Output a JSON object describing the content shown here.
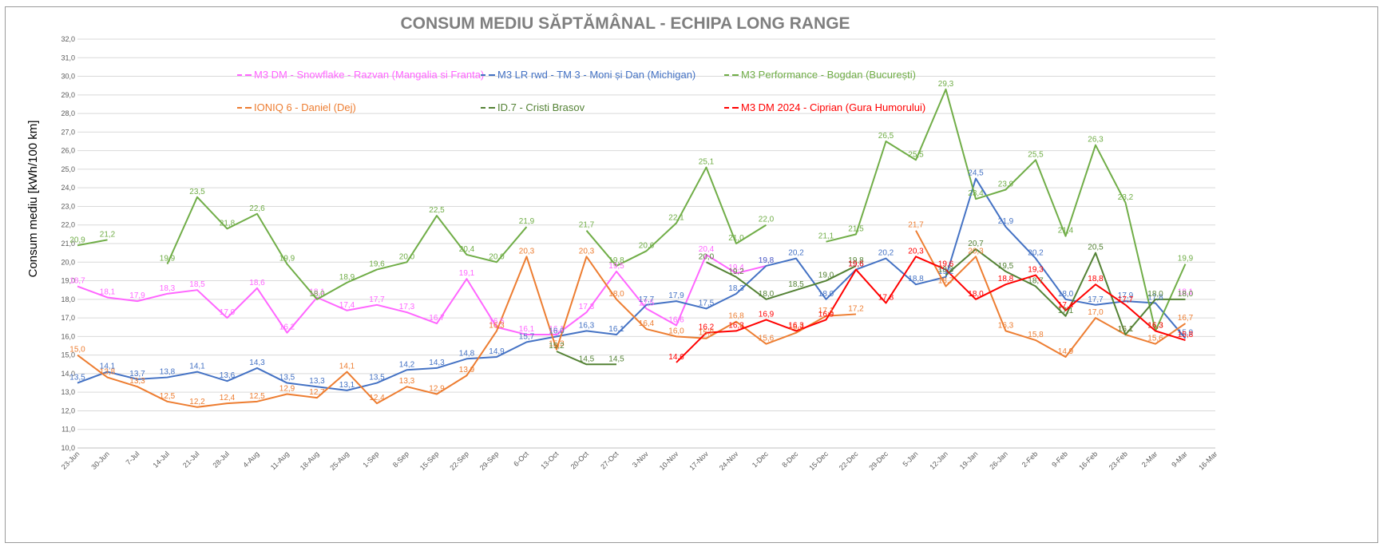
{
  "chart_data": {
    "type": "line",
    "title": "CONSUM MEDIU SĂPTĂMÂNAL - ECHIPA LONG RANGE",
    "ylabel": "Consum mediu [kWh/100 km]",
    "xlabel": "",
    "ylim": [
      10.0,
      32.0
    ],
    "ytick_step": 1.0,
    "grid": true,
    "legend_position": "top-left inside plot, two rows",
    "categories": [
      "23-Jun",
      "30-Jun",
      "7-Jul",
      "14-Jul",
      "21-Jul",
      "28-Jul",
      "4-Aug",
      "11-Aug",
      "18-Aug",
      "25-Aug",
      "1-Sep",
      "8-Sep",
      "15-Sep",
      "22-Sep",
      "29-Sep",
      "6-Oct",
      "13-Oct",
      "20-Oct",
      "27-Oct",
      "3-Nov",
      "10-Nov",
      "17-Nov",
      "24-Nov",
      "1-Dec",
      "8-Dec",
      "15-Dec",
      "22-Dec",
      "29-Dec",
      "5-Jan",
      "12-Jan",
      "19-Jan",
      "26-Jan",
      "2-Feb",
      "9-Feb",
      "16-Feb",
      "23-Feb",
      "2-Mar",
      "9-Mar",
      "16-Mar"
    ],
    "series": [
      {
        "name": "M3 DM - Snowflake - Razvan (Mangalia si Franta)",
        "color": "#ff66ff",
        "values": [
          18.7,
          18.1,
          17.9,
          18.3,
          18.5,
          17.0,
          18.6,
          16.2,
          18.1,
          17.4,
          17.7,
          17.3,
          16.7,
          19.1,
          16.5,
          16.1,
          16.1,
          17.3,
          19.5,
          17.5,
          16.6,
          20.4,
          19.4,
          19.8,
          null,
          null,
          null,
          null,
          null,
          null,
          null,
          null,
          null,
          null,
          null,
          null,
          null,
          18.1,
          null
        ]
      },
      {
        "name": "M3 LR rwd - TM 3 - Moni și Dan (Michigan)",
        "color": "#4472c4",
        "values": [
          13.5,
          14.1,
          13.7,
          13.8,
          14.1,
          13.6,
          14.3,
          13.5,
          13.3,
          13.1,
          13.5,
          14.2,
          14.3,
          14.8,
          14.9,
          15.7,
          16.0,
          16.3,
          16.1,
          17.7,
          17.9,
          17.5,
          18.3,
          19.8,
          20.2,
          18.0,
          19.6,
          20.2,
          18.8,
          19.2,
          24.5,
          21.9,
          20.2,
          18.0,
          17.7,
          17.9,
          17.8,
          15.9,
          null
        ]
      },
      {
        "name": "M3 Performance - Bogdan (București)",
        "color": "#70ad47",
        "values": [
          20.9,
          21.2,
          null,
          19.9,
          23.5,
          21.8,
          22.6,
          19.9,
          18.0,
          18.9,
          19.6,
          20.0,
          22.5,
          20.4,
          20.0,
          21.9,
          null,
          21.7,
          19.8,
          20.6,
          22.1,
          25.1,
          21.0,
          22.0,
          null,
          21.1,
          21.5,
          26.5,
          25.5,
          29.3,
          23.4,
          23.9,
          25.5,
          21.4,
          26.3,
          23.2,
          16.3,
          19.9,
          null
        ]
      },
      {
        "name": "IONIQ 6 - Daniel (Dej)",
        "color": "#ed7d31",
        "values": [
          15.0,
          13.8,
          13.3,
          12.5,
          12.2,
          12.4,
          12.5,
          12.9,
          12.7,
          14.1,
          12.4,
          13.3,
          12.9,
          13.9,
          16.3,
          20.3,
          15.3,
          20.3,
          18.0,
          16.4,
          16.0,
          15.9,
          16.8,
          15.6,
          16.2,
          17.1,
          17.2,
          null,
          21.7,
          18.7,
          20.3,
          16.3,
          15.8,
          14.9,
          17.0,
          16.1,
          15.6,
          16.7,
          null
        ]
      },
      {
        "name": "ID.7 - Cristi Brasov",
        "color": "#548235",
        "values": [
          null,
          null,
          null,
          null,
          null,
          null,
          null,
          null,
          null,
          null,
          null,
          null,
          null,
          null,
          null,
          null,
          15.2,
          14.5,
          14.5,
          null,
          null,
          20.0,
          19.2,
          18.0,
          18.5,
          19.0,
          19.8,
          null,
          null,
          19.3,
          20.7,
          19.5,
          18.7,
          17.1,
          20.5,
          16.1,
          18.0,
          18.0,
          null
        ]
      },
      {
        "name": "M3 DM 2024 - Ciprian (Gura Humorului)",
        "color": "#ff0000",
        "values": [
          null,
          null,
          null,
          null,
          null,
          null,
          null,
          null,
          null,
          null,
          null,
          null,
          null,
          null,
          null,
          null,
          null,
          null,
          null,
          null,
          14.6,
          16.2,
          16.3,
          16.9,
          16.3,
          16.9,
          19.6,
          17.8,
          20.3,
          19.6,
          18.0,
          18.8,
          19.3,
          17.4,
          18.8,
          17.7,
          16.3,
          15.8,
          null
        ]
      }
    ]
  }
}
